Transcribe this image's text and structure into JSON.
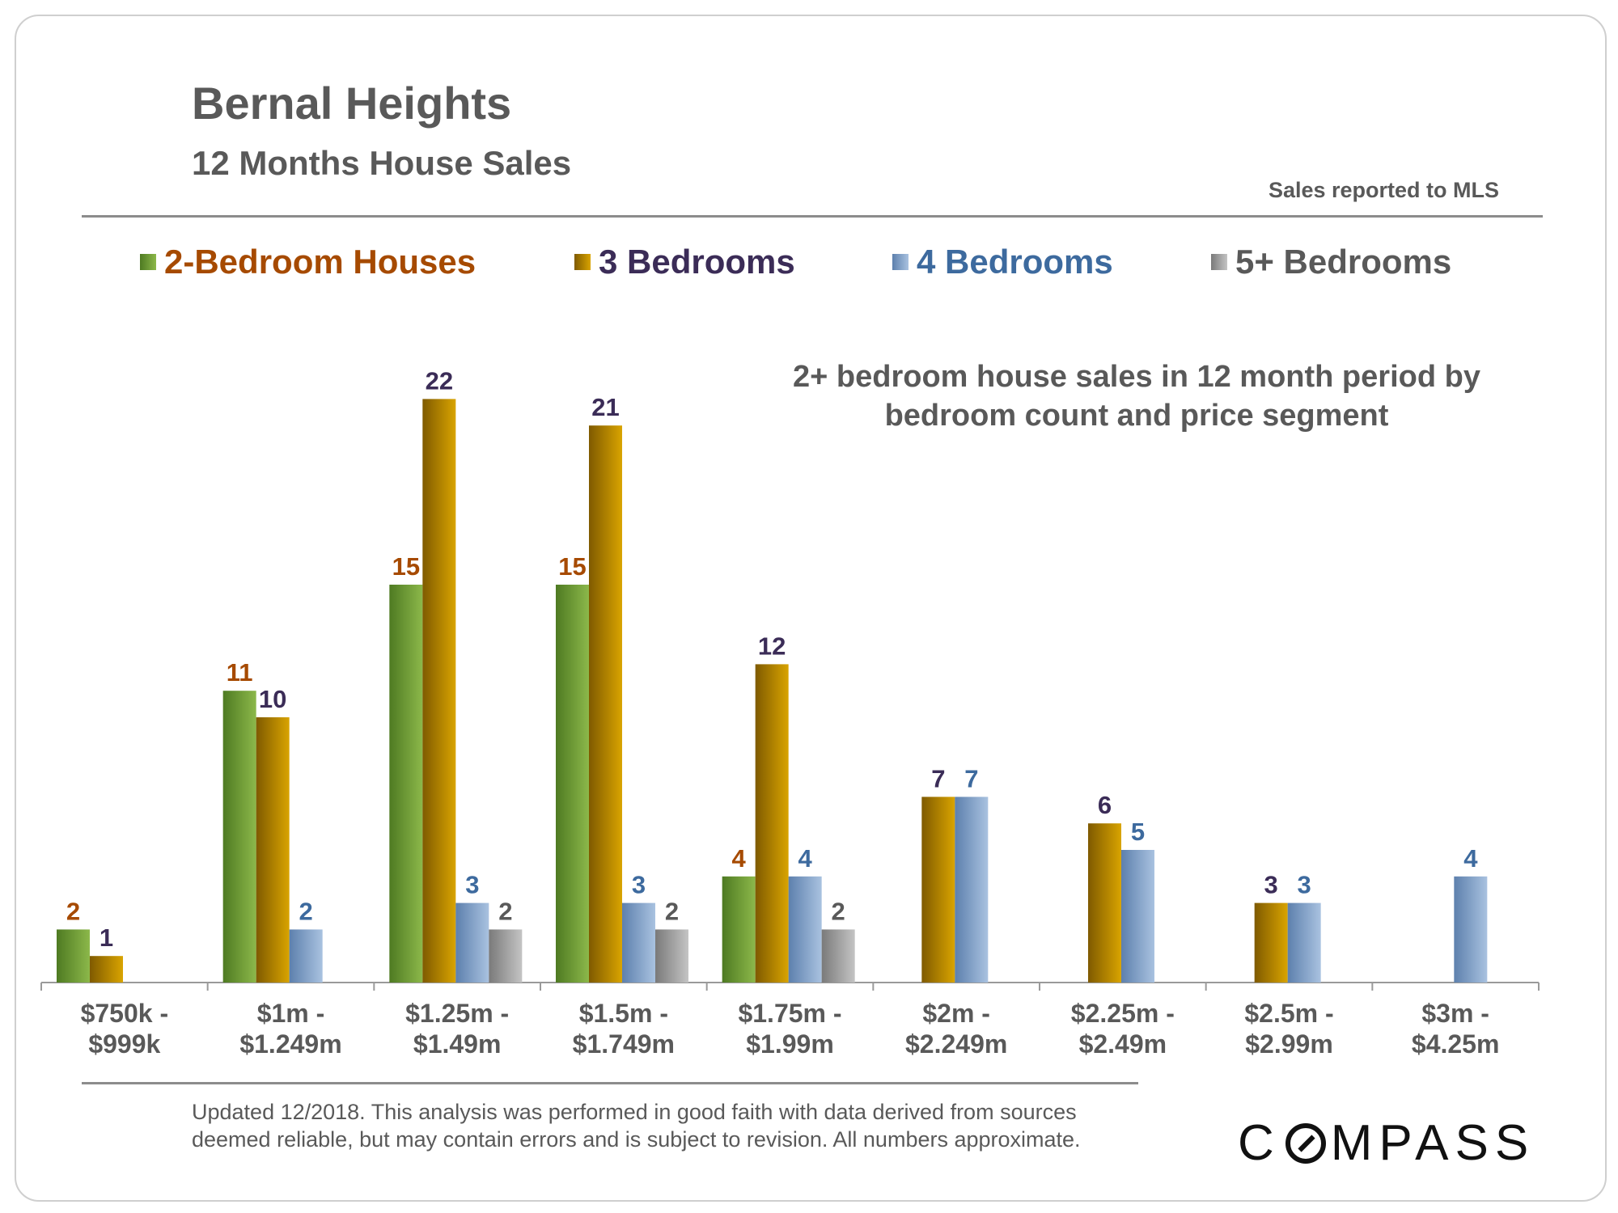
{
  "header": {
    "title": "Bernal Heights",
    "subtitle": "12 Months House Sales",
    "source_note": "Sales reported to MLS"
  },
  "annotation": {
    "line1": "2+ bedroom house sales in 12 month period by",
    "line2": "bedroom count and price segment"
  },
  "footer": {
    "line1": "Updated 12/2018. This analysis was performed in good faith with data derived from sources",
    "line2": "deemed reliable, but may contain errors and is subject to revision. All numbers approximate.",
    "logo_pre": "C",
    "logo_post": "MPASS"
  },
  "chart_data": {
    "type": "bar",
    "title": "Bernal Heights 12 Months House Sales",
    "ylim": [
      0,
      22
    ],
    "categories": [
      [
        "$750k -",
        "$999k"
      ],
      [
        "$1m -",
        "$1.249m"
      ],
      [
        "$1.25m -",
        "$1.49m"
      ],
      [
        "$1.5m -",
        "$1.749m"
      ],
      [
        "$1.75m -",
        "$1.99m"
      ],
      [
        "$2m -",
        "$2.249m"
      ],
      [
        "$2.25m -",
        "$2.49m"
      ],
      [
        "$2.5m -",
        "$2.99m"
      ],
      [
        "$3m -",
        "$4.25m"
      ]
    ],
    "series": [
      {
        "name": "2-Bedroom Houses",
        "legend_color": "#a64a00",
        "label_color": "#a64a00",
        "fill_dark": "#4e7a22",
        "fill_light": "#8cb84a",
        "values": [
          2,
          11,
          15,
          15,
          4,
          null,
          null,
          null,
          null
        ]
      },
      {
        "name": "3 Bedrooms",
        "legend_color": "#3b2c57",
        "label_color": "#3b2c57",
        "fill_dark": "#7f5a00",
        "fill_light": "#d9a400",
        "values": [
          1,
          10,
          22,
          21,
          12,
          7,
          6,
          3,
          null
        ]
      },
      {
        "name": "4 Bedrooms",
        "legend_color": "#3d6a9e",
        "label_color": "#3d6a9e",
        "fill_dark": "#5d80ad",
        "fill_light": "#a9c2e0",
        "values": [
          null,
          2,
          3,
          3,
          4,
          7,
          5,
          3,
          4
        ]
      },
      {
        "name": "5+ Bedrooms",
        "legend_color": "#595959",
        "label_color": "#595959",
        "fill_dark": "#7a7a7a",
        "fill_light": "#c4c4c4",
        "values": [
          null,
          null,
          2,
          2,
          2,
          null,
          null,
          null,
          null
        ]
      }
    ]
  }
}
